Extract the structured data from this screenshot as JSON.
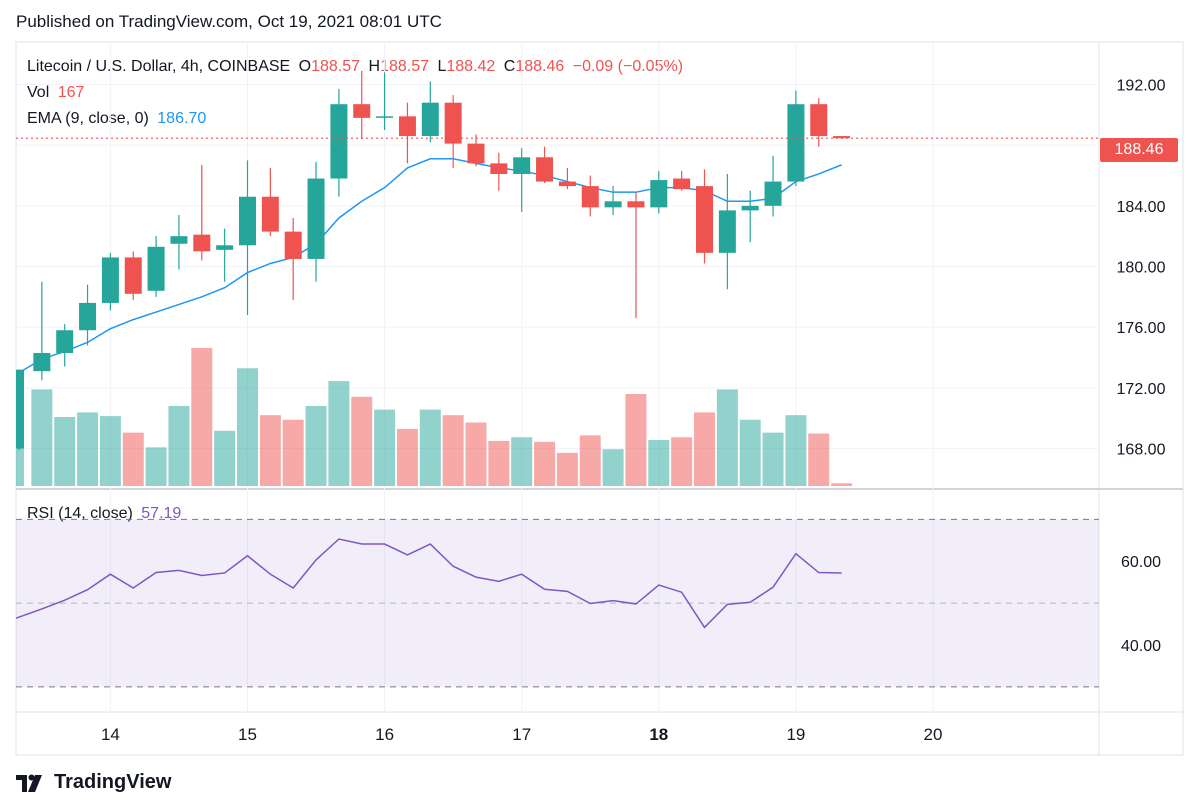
{
  "published": "Published on TradingView.com, Oct 19, 2021 08:01 UTC",
  "header": {
    "symbol": "Litecoin / U.S. Dollar, 4h, COINBASE",
    "open_label": "O",
    "open": "188.57",
    "high_label": "H",
    "high": "188.57",
    "low_label": "L",
    "low": "188.42",
    "close_label": "C",
    "close": "188.46",
    "change": "−0.09 (−0.05%)"
  },
  "vol": {
    "label": "Vol",
    "value": "167"
  },
  "ema": {
    "label": "EMA (9, close, 0)",
    "value": "186.70"
  },
  "rsi": {
    "label": "RSI (14, close)",
    "value": "57.19"
  },
  "last_price_label": "188.46",
  "brand": "TradingView",
  "colors": {
    "up": "#26a69a",
    "down": "#ef5350",
    "ema": "#2196f3",
    "rsi": "#7e57c2"
  },
  "chart_data": {
    "type": "candlestick",
    "price_axis": {
      "ticks": [
        "192.00",
        "188.00",
        "184.00",
        "180.00",
        "176.00",
        "172.00",
        "168.00"
      ],
      "range": [
        165.4,
        194.8
      ]
    },
    "rsi_axis": {
      "ticks": [
        "60.00",
        "40.00"
      ],
      "range": [
        24,
        77
      ],
      "bands": [
        30,
        70
      ],
      "mid": 50
    },
    "x_ticks": [
      {
        "label": "14",
        "i": 4,
        "bold": false
      },
      {
        "label": "15",
        "i": 10,
        "bold": false
      },
      {
        "label": "16",
        "i": 16,
        "bold": false
      },
      {
        "label": "17",
        "i": 22,
        "bold": false
      },
      {
        "label": "18",
        "i": 28,
        "bold": true
      },
      {
        "label": "19",
        "i": 34,
        "bold": false
      },
      {
        "label": "20",
        "i": 40,
        "bold": false
      }
    ],
    "last_price": 188.46,
    "candles": [
      [
        168.0,
        173.2,
        167.9,
        173.2
      ],
      [
        173.1,
        179.0,
        172.5,
        174.3
      ],
      [
        174.3,
        176.2,
        173.4,
        175.8
      ],
      [
        175.8,
        178.8,
        174.8,
        177.6
      ],
      [
        177.6,
        180.9,
        177.1,
        180.6
      ],
      [
        180.6,
        181.0,
        177.8,
        178.2
      ],
      [
        178.4,
        182.0,
        178.0,
        181.3
      ],
      [
        181.5,
        183.4,
        179.8,
        182.0
      ],
      [
        182.1,
        186.7,
        180.4,
        181.0
      ],
      [
        181.1,
        182.5,
        179.0,
        181.4
      ],
      [
        181.4,
        187.0,
        176.8,
        184.6
      ],
      [
        184.6,
        186.5,
        182.0,
        182.3
      ],
      [
        182.3,
        183.2,
        177.8,
        180.5
      ],
      [
        180.5,
        186.9,
        179.0,
        185.8
      ],
      [
        185.8,
        191.7,
        184.6,
        190.7
      ],
      [
        190.7,
        192.9,
        188.4,
        189.8
      ],
      [
        189.8,
        192.8,
        189.0,
        189.9
      ],
      [
        189.9,
        190.8,
        186.8,
        188.6
      ],
      [
        188.6,
        192.2,
        188.2,
        190.8
      ],
      [
        190.8,
        191.3,
        186.5,
        188.1
      ],
      [
        188.1,
        188.7,
        186.6,
        186.8
      ],
      [
        186.8,
        187.5,
        185.0,
        186.1
      ],
      [
        186.1,
        187.8,
        183.6,
        187.2
      ],
      [
        187.2,
        187.9,
        185.5,
        185.6
      ],
      [
        185.6,
        186.5,
        185.1,
        185.3
      ],
      [
        185.3,
        186.0,
        183.3,
        183.9
      ],
      [
        183.9,
        185.3,
        183.4,
        184.3
      ],
      [
        184.3,
        184.9,
        176.6,
        183.9
      ],
      [
        183.9,
        186.3,
        183.5,
        185.7
      ],
      [
        185.8,
        186.3,
        185.0,
        185.1
      ],
      [
        185.3,
        186.4,
        180.2,
        180.9
      ],
      [
        180.9,
        186.1,
        178.5,
        183.7
      ],
      [
        183.7,
        185.0,
        181.6,
        184.0
      ],
      [
        184.0,
        187.3,
        183.3,
        185.6
      ],
      [
        185.6,
        191.6,
        185.3,
        190.7
      ],
      [
        190.7,
        191.1,
        187.9,
        188.6
      ],
      [
        188.6,
        188.6,
        188.4,
        188.46
      ]
    ],
    "ema": [
      173.0,
      173.9,
      174.4,
      175.0,
      175.9,
      176.5,
      177.0,
      177.5,
      178.0,
      178.6,
      179.6,
      180.2,
      180.6,
      181.5,
      183.2,
      184.3,
      185.2,
      186.5,
      187.1,
      187.1,
      186.8,
      186.5,
      186.3,
      186.0,
      185.6,
      185.2,
      184.9,
      184.9,
      185.2,
      185.2,
      185.0,
      184.3,
      184.3,
      184.5,
      185.6,
      186.1,
      186.7
    ],
    "volume": [
      120,
      105,
      75,
      80,
      76,
      58,
      42,
      87,
      150,
      60,
      128,
      77,
      72,
      87,
      114,
      97,
      83,
      62,
      83,
      77,
      69,
      49,
      53,
      48,
      36,
      55,
      40,
      100,
      50,
      53,
      80,
      105,
      72,
      58,
      77,
      57,
      3
    ],
    "rsi": [
      46.4,
      48.6,
      50.7,
      53.2,
      56.9,
      53.6,
      57.3,
      57.8,
      56.6,
      57.2,
      61.3,
      56.9,
      53.6,
      60.3,
      65.3,
      64.1,
      64.1,
      61.5,
      64.1,
      58.8,
      56.2,
      55.2,
      56.9,
      53.3,
      52.8,
      49.9,
      50.6,
      49.8,
      54.3,
      52.6,
      44.2,
      49.7,
      50.2,
      53.8,
      61.8,
      57.3,
      57.19
    ]
  }
}
